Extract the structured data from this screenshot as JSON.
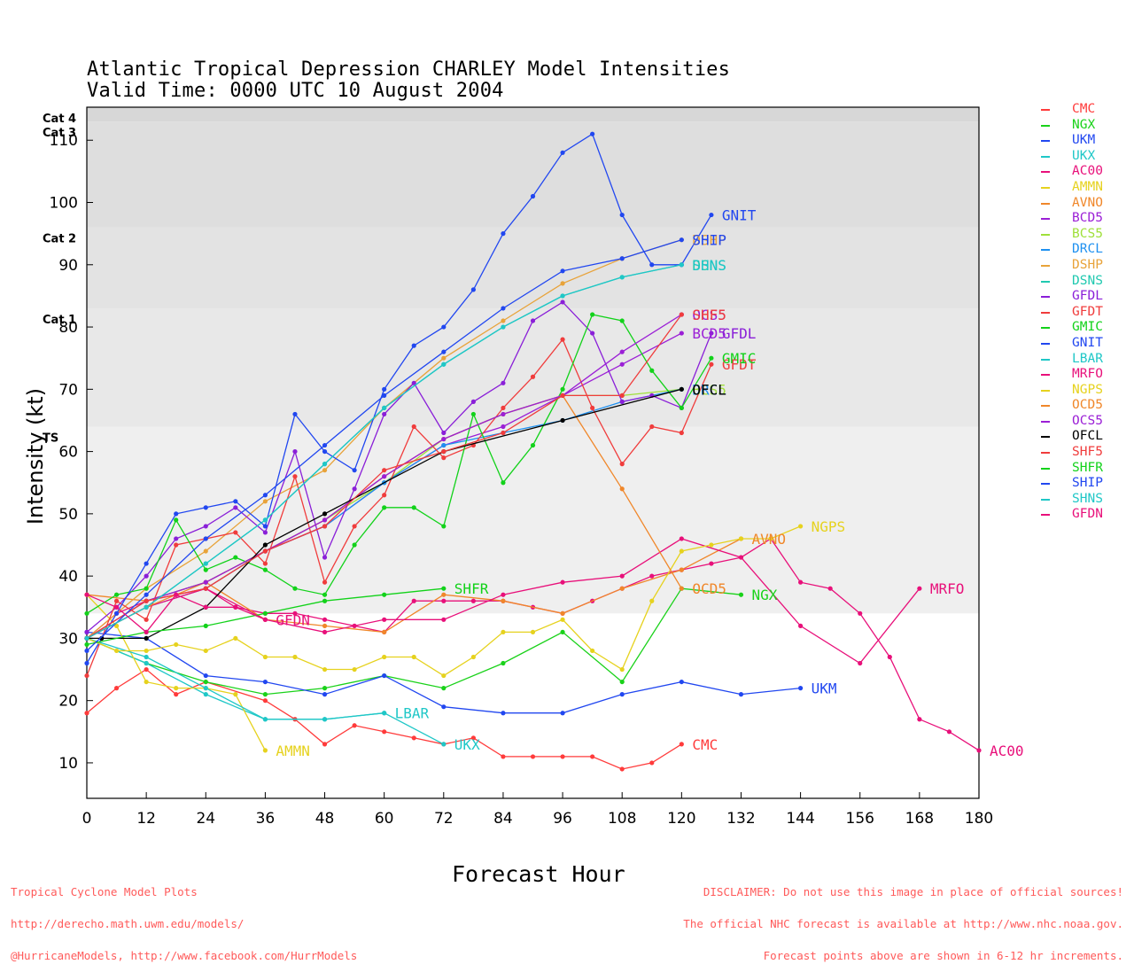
{
  "title_line1": "Atlantic Tropical Depression CHARLEY Model Intensities",
  "title_line2": "Valid Time: 0000 UTC 10 August 2004",
  "xlabel": "Forecast Hour",
  "ylabel": "Intensity (kt)",
  "footer_left": [
    "Tropical Cyclone Model Plots",
    "http://derecho.math.uwm.edu/models/",
    "@HurricaneModels, http://www.facebook.com/HurrModels"
  ],
  "footer_right": [
    "DISCLAIMER: Do not use this image in place of official sources!",
    "The official NHC forecast is available at http://www.nhc.noaa.gov.",
    "Forecast points above are shown in 6-12 hr increments."
  ],
  "chart_data": {
    "type": "line",
    "title": "Atlantic Tropical Depression CHARLEY Model Intensities",
    "subtitle": "Valid Time: 0000 UTC 10 August 2004",
    "xlabel": "Forecast Hour",
    "ylabel": "Intensity (kt)",
    "xlim": [
      0,
      180
    ],
    "ylim": [
      4.3,
      115.3
    ],
    "xticks": [
      0,
      12,
      24,
      36,
      48,
      60,
      72,
      84,
      96,
      108,
      120,
      132,
      144,
      156,
      168,
      180
    ],
    "yticks": [
      10,
      20,
      30,
      40,
      50,
      60,
      70,
      80,
      90,
      100,
      110
    ],
    "legend_position": "right",
    "category_bands": [
      {
        "label": "TS",
        "from": 34,
        "to": 64,
        "color": "#efefef"
      },
      {
        "label": "Cat 1",
        "from": 64,
        "to": 83,
        "color": "#e8e8e8"
      },
      {
        "label": "Cat 2",
        "from": 83,
        "to": 96,
        "color": "#e3e3e3"
      },
      {
        "label": "Cat 3",
        "from": 96,
        "to": 113,
        "color": "#dedede"
      },
      {
        "label": "Cat 4",
        "from": 113,
        "to": 115.3,
        "color": "#d7d7d7"
      }
    ],
    "series": [
      {
        "name": "CMC",
        "color": "#ff3b3b",
        "end_label": "CMC",
        "x": [
          0,
          6,
          12,
          18,
          24,
          36,
          42,
          48,
          54,
          60,
          66,
          72,
          78,
          84,
          90,
          96,
          102,
          108,
          114,
          120
        ],
        "y": [
          18,
          22,
          25,
          21,
          23,
          20,
          17,
          13,
          16,
          15,
          14,
          13,
          14,
          11,
          11,
          11,
          11,
          9,
          10,
          13
        ]
      },
      {
        "name": "NGX",
        "color": "#1ad21a",
        "end_label": "NGX",
        "x": [
          0,
          12,
          24,
          36,
          48,
          60,
          72,
          84,
          96,
          108,
          120,
          132
        ],
        "y": [
          30,
          26,
          23,
          21,
          22,
          24,
          22,
          26,
          31,
          23,
          38,
          37
        ]
      },
      {
        "name": "UKM",
        "color": "#2147f0",
        "end_label": "UKM",
        "x": [
          0,
          12,
          24,
          36,
          48,
          60,
          72,
          84,
          96,
          108,
          120,
          132,
          144
        ],
        "y": [
          31,
          30,
          24,
          23,
          21,
          24,
          19,
          18,
          18,
          21,
          23,
          21,
          22
        ]
      },
      {
        "name": "UKX",
        "color": "#1fc7c7",
        "end_label": "UKX",
        "x": [
          0,
          12,
          24,
          36,
          48,
          60,
          72
        ],
        "y": [
          30,
          26,
          21,
          17,
          17,
          18,
          13
        ]
      },
      {
        "name": "AC00",
        "color": "#e8107a",
        "end_label": "AC00",
        "x": [
          0,
          6,
          12,
          18,
          24,
          30,
          36,
          42,
          48,
          54,
          60,
          66,
          72,
          78,
          84,
          90,
          96,
          102,
          108,
          114,
          120,
          126,
          132,
          138,
          144,
          150,
          156,
          162,
          168,
          174,
          180
        ],
        "y": [
          30,
          34,
          36,
          37,
          38,
          35,
          34,
          34,
          33,
          32,
          31,
          36,
          36,
          36,
          36,
          35,
          34,
          36,
          38,
          40,
          41,
          42,
          43,
          46,
          39,
          38,
          34,
          27,
          17,
          15,
          12
        ]
      },
      {
        "name": "AMMN",
        "color": "#e6d21e",
        "end_label": "AMMN",
        "x": [
          0,
          6,
          12,
          18,
          24,
          30,
          36
        ],
        "y": [
          37,
          32,
          23,
          22,
          22,
          21,
          12
        ]
      },
      {
        "name": "AVNO",
        "color": "#f0872a",
        "end_label": "AVNO",
        "x": [
          0,
          12,
          24,
          36,
          48,
          60,
          72,
          84,
          96,
          108,
          120,
          132
        ],
        "y": [
          37,
          36,
          39,
          33,
          32,
          31,
          37,
          36,
          34,
          38,
          41,
          46
        ]
      },
      {
        "name": "BCD5",
        "color": "#9b1fd6",
        "end_label": "BCD5",
        "x": [
          0,
          12,
          24,
          36,
          48,
          60,
          72,
          84,
          96,
          108,
          120
        ],
        "y": [
          30,
          36,
          39,
          44,
          48,
          55,
          61,
          64,
          69,
          74,
          79
        ]
      },
      {
        "name": "BCS5",
        "color": "#9fe03a",
        "end_label": "BCS5",
        "x": [
          0,
          12,
          24,
          36,
          48,
          60,
          72,
          84,
          96,
          108,
          120
        ],
        "y": [
          30,
          36,
          39,
          44,
          49,
          55,
          62,
          66,
          69,
          69,
          70
        ]
      },
      {
        "name": "DRCL",
        "color": "#1e90f0",
        "end_label": "DRCL",
        "x": [
          0,
          12,
          24,
          36,
          48,
          60,
          72,
          84,
          96,
          108,
          120
        ],
        "y": [
          30,
          35,
          38,
          44,
          48,
          55,
          61,
          63,
          65,
          68,
          70
        ]
      },
      {
        "name": "DSHP",
        "color": "#e8a33a",
        "end_label": "DSHP",
        "x": [
          0,
          12,
          24,
          36,
          48,
          60,
          72,
          84,
          96,
          108,
          120
        ],
        "y": [
          30,
          38,
          44,
          52,
          57,
          67,
          75,
          81,
          87,
          91,
          94
        ]
      },
      {
        "name": "DSNS",
        "color": "#20c9b0",
        "end_label": "DSNS",
        "x": [
          0,
          12,
          24,
          36,
          48,
          60,
          72,
          84,
          96,
          108,
          120
        ],
        "y": [
          30,
          35,
          42,
          49,
          58,
          67,
          74,
          80,
          85,
          88,
          90
        ]
      },
      {
        "name": "GFDL",
        "color": "#8a1fd8",
        "end_label": "GFDL",
        "x": [
          0,
          6,
          12,
          18,
          24,
          30,
          36,
          42,
          48,
          54,
          60,
          66,
          72,
          78,
          84,
          90,
          96,
          102,
          108,
          114,
          120,
          126
        ],
        "y": [
          31,
          35,
          40,
          46,
          48,
          51,
          47,
          60,
          43,
          54,
          66,
          71,
          63,
          68,
          71,
          81,
          84,
          79,
          68,
          69,
          67,
          79
        ]
      },
      {
        "name": "GFDT",
        "color": "#f03c3c",
        "end_label": "GFDT",
        "x": [
          0,
          6,
          12,
          18,
          24,
          30,
          36,
          42,
          48,
          54,
          60,
          66,
          72,
          78,
          84,
          90,
          96,
          102,
          108,
          114,
          120,
          126
        ],
        "y": [
          24,
          36,
          33,
          45,
          46,
          47,
          42,
          56,
          39,
          48,
          53,
          64,
          59,
          61,
          67,
          72,
          78,
          67,
          58,
          64,
          63,
          74
        ]
      },
      {
        "name": "GMIC",
        "color": "#12d21a",
        "end_label": "GMIC",
        "x": [
          0,
          6,
          12,
          18,
          24,
          30,
          36,
          42,
          48,
          54,
          60,
          66,
          72,
          78,
          84,
          90,
          96,
          102,
          108,
          114,
          120,
          126
        ],
        "y": [
          34,
          37,
          38,
          49,
          41,
          43,
          41,
          38,
          37,
          45,
          51,
          51,
          48,
          66,
          55,
          61,
          70,
          82,
          81,
          73,
          67,
          75
        ]
      },
      {
        "name": "GNIT",
        "color": "#2147f0",
        "end_label": "GNIT",
        "x": [
          0,
          6,
          12,
          18,
          24,
          30,
          36,
          42,
          48,
          54,
          60,
          66,
          72,
          78,
          84,
          90,
          96,
          102,
          108,
          114,
          120,
          126
        ],
        "y": [
          26,
          34,
          42,
          50,
          51,
          52,
          48,
          66,
          60,
          57,
          70,
          77,
          80,
          86,
          95,
          101,
          108,
          111,
          98,
          90,
          90,
          98
        ]
      },
      {
        "name": "LBAR",
        "color": "#1fc7c7",
        "end_label": "LBAR",
        "x": [
          0,
          12,
          24,
          36,
          48,
          60
        ],
        "y": [
          30,
          27,
          22,
          17,
          17,
          18
        ]
      },
      {
        "name": "MRFO",
        "color": "#e8107a",
        "end_label": "MRFO",
        "x": [
          0,
          12,
          24,
          36,
          48,
          60,
          72,
          84,
          96,
          108,
          120,
          132,
          144,
          156,
          168
        ],
        "y": [
          30,
          35,
          38,
          33,
          31,
          33,
          33,
          37,
          39,
          40,
          46,
          43,
          32,
          26,
          38
        ]
      },
      {
        "name": "NGPS",
        "color": "#e6d21e",
        "end_label": "NGPS",
        "x": [
          0,
          6,
          12,
          18,
          24,
          30,
          36,
          42,
          48,
          54,
          60,
          66,
          72,
          78,
          84,
          90,
          96,
          102,
          108,
          114,
          120,
          126,
          132,
          138,
          144
        ],
        "y": [
          30,
          28,
          28,
          29,
          28,
          30,
          27,
          27,
          25,
          25,
          27,
          27,
          24,
          27,
          31,
          31,
          33,
          28,
          25,
          36,
          44,
          45,
          46,
          46,
          48
        ]
      },
      {
        "name": "OCD5",
        "color": "#f0872a",
        "end_label": "OCD5",
        "x": [
          0,
          12,
          24,
          36,
          48,
          60,
          72,
          84,
          96,
          108,
          120
        ],
        "y": [
          30,
          35,
          39,
          44,
          49,
          56,
          62,
          66,
          69,
          54,
          38
        ]
      },
      {
        "name": "OCS5",
        "color": "#9b1fd6",
        "end_label": "OCS5",
        "x": [
          0,
          12,
          24,
          36,
          48,
          60,
          72,
          84,
          96,
          108,
          120
        ],
        "y": [
          30,
          36,
          39,
          44,
          49,
          56,
          62,
          66,
          69,
          76,
          82
        ]
      },
      {
        "name": "OFCL",
        "color": "#000000",
        "end_label": "OFCL",
        "x": [
          0,
          3,
          12,
          24,
          36,
          48,
          72,
          96,
          120
        ],
        "y": [
          30,
          30,
          30,
          35,
          45,
          50,
          60,
          65,
          70
        ]
      },
      {
        "name": "SHF5",
        "color": "#f03c3c",
        "end_label": "SHF5",
        "x": [
          0,
          12,
          24,
          36,
          48,
          60,
          72,
          84,
          96,
          108,
          120
        ],
        "y": [
          30,
          36,
          38,
          44,
          48,
          57,
          60,
          63,
          69,
          69,
          82
        ]
      },
      {
        "name": "SHFR",
        "color": "#12d21a",
        "end_label": "SHFR",
        "x": [
          0,
          12,
          24,
          36,
          48,
          60,
          72
        ],
        "y": [
          29,
          31,
          32,
          34,
          36,
          37,
          38
        ]
      },
      {
        "name": "SHIP",
        "color": "#2147f0",
        "end_label": "SHIP",
        "x": [
          0,
          12,
          24,
          36,
          48,
          60,
          72,
          84,
          96,
          108,
          120
        ],
        "y": [
          28,
          37,
          46,
          53,
          61,
          69,
          76,
          83,
          89,
          91,
          94
        ]
      },
      {
        "name": "SHNS",
        "color": "#1fc7c7",
        "end_label": "SHNS",
        "x": [
          0,
          12,
          24,
          36,
          48,
          60,
          72,
          84,
          96,
          108,
          120
        ],
        "y": [
          30,
          35,
          42,
          49,
          58,
          67,
          74,
          80,
          85,
          88,
          90
        ]
      },
      {
        "name": "GFDN",
        "color": "#e8107a",
        "end_label": "GFDN",
        "x": [
          0,
          6,
          12,
          18,
          24,
          30,
          36
        ],
        "y": [
          37,
          35,
          31,
          37,
          35,
          35,
          33
        ]
      }
    ]
  }
}
